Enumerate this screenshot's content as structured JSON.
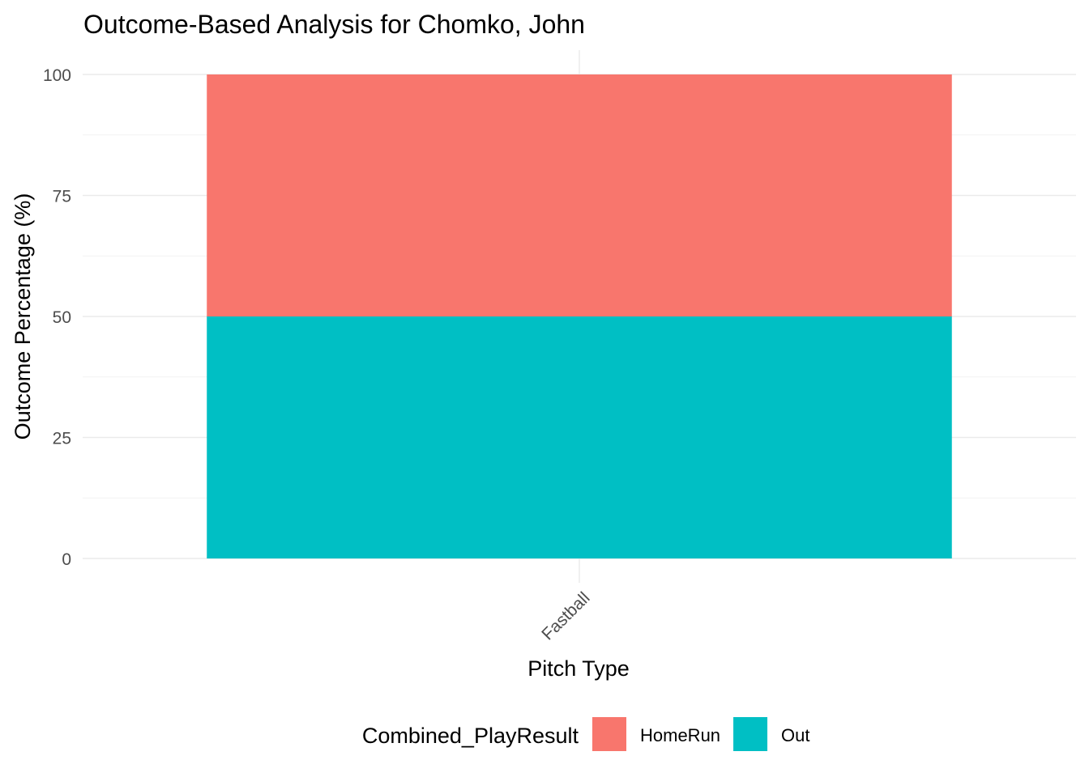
{
  "chart_data": {
    "type": "bar",
    "stacked": true,
    "title": "Outcome-Based Analysis for Chomko, John",
    "xlabel": "Pitch Type",
    "ylabel": "Outcome Percentage (%)",
    "categories": [
      "Fastball"
    ],
    "series": [
      {
        "name": "Out",
        "values": [
          50
        ],
        "color": "#00BFC4"
      },
      {
        "name": "HomeRun",
        "values": [
          50
        ],
        "color": "#F8766D"
      }
    ],
    "ylim": [
      0,
      100
    ],
    "yticks": [
      0,
      25,
      50,
      75,
      100
    ],
    "grid": true,
    "legend": {
      "title": "Combined_PlayResult",
      "position": "bottom",
      "entries": [
        "HomeRun",
        "Out"
      ]
    }
  }
}
